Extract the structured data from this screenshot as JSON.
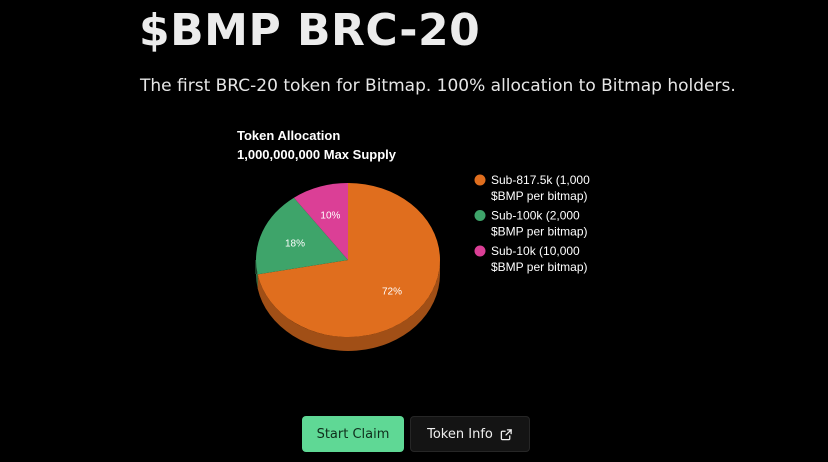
{
  "header": {
    "title": "$BMP BRC-20",
    "subtitle": "The first BRC-20 token for Bitmap. 100% allocation to Bitmap holders."
  },
  "chart_data": {
    "type": "pie",
    "title": "Token Allocation",
    "subtitle": "1,000,000,000 Max Supply",
    "legend_position": "right",
    "series": [
      {
        "name": "Sub-817.5k (1,000 $BMP per bitmap)",
        "value": 72,
        "label": "72%",
        "color": "#e06e1e"
      },
      {
        "name": "Sub-100k (2,000 $BMP per bitmap)",
        "value": 18,
        "label": "18%",
        "color": "#3ea46a"
      },
      {
        "name": "Sub-10k (10,000 $BMP per bitmap)",
        "value": 10,
        "label": "10%",
        "color": "#db3f96"
      }
    ]
  },
  "actions": {
    "claim_label": "Start Claim",
    "info_label": "Token Info",
    "info_icon": "external-link-icon"
  },
  "colors": {
    "background": "#000000",
    "claim_button": "#5fd895",
    "info_button": "#141414"
  }
}
